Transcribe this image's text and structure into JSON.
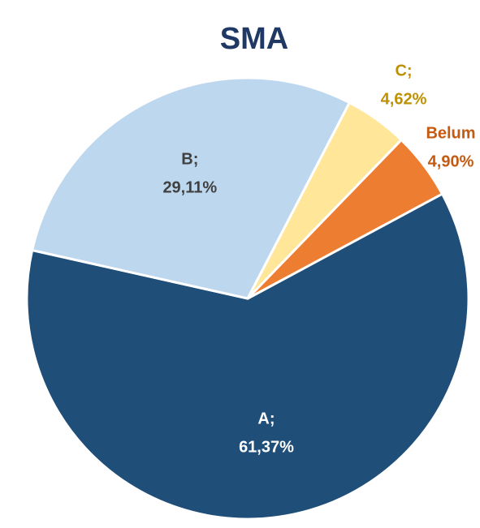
{
  "chart_data": {
    "type": "pie",
    "title": "SMA",
    "categories": [
      "A;",
      "B;",
      "C;",
      "Belum"
    ],
    "values": [
      61.37,
      29.11,
      4.62,
      4.9
    ],
    "value_labels": [
      "61,37%",
      "29,11%",
      "4,62%",
      "4,90%"
    ],
    "colors": [
      "#1f4e79",
      "#bdd7ee",
      "#ffe699",
      "#ed7d31"
    ],
    "label_colors": [
      "#ffffff",
      "#404040",
      "#bf9000",
      "#c55a11"
    ]
  }
}
